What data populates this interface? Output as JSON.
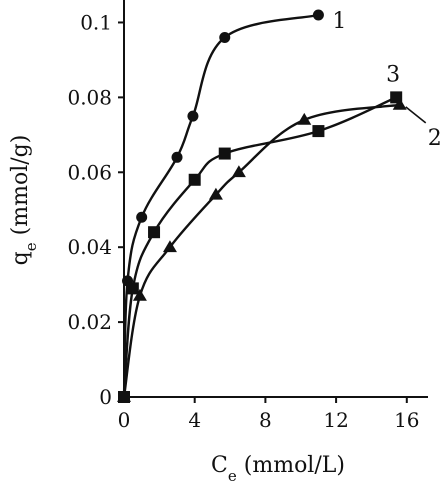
{
  "chart_data": {
    "type": "line",
    "xlabel": "Ce (mmol/L)",
    "ylabel": "qe (mmol/g)",
    "xlim": [
      0,
      17.2
    ],
    "ylim": [
      0,
      0.106
    ],
    "x_ticks": [
      0,
      4,
      8,
      12,
      16
    ],
    "y_ticks": [
      0,
      0.02,
      0.04,
      0.06,
      0.08,
      0.1
    ],
    "x_tick_labels": [
      "0",
      "4",
      "8",
      "12",
      "16"
    ],
    "y_tick_labels": [
      "0",
      "0.02",
      "0.04",
      "0.06",
      "0.08",
      "0.1"
    ],
    "grid": false,
    "legend": "none",
    "series": [
      {
        "label": "1",
        "marker": "circle",
        "color": "#111111",
        "x": [
          0,
          0.2,
          1.0,
          3.0,
          3.9,
          5.7,
          11.0
        ],
        "y": [
          0,
          0.031,
          0.048,
          0.064,
          0.075,
          0.096,
          0.102
        ]
      },
      {
        "label": "2",
        "marker": "triangle",
        "color": "#111111",
        "x": [
          0,
          0.9,
          2.6,
          5.2,
          6.5,
          10.2,
          15.6
        ],
        "y": [
          0,
          0.027,
          0.04,
          0.054,
          0.06,
          0.074,
          0.078
        ]
      },
      {
        "label": "3",
        "marker": "square",
        "color": "#111111",
        "x": [
          0,
          0.5,
          1.7,
          4.0,
          5.7,
          11.0,
          15.4
        ],
        "y": [
          0,
          0.029,
          0.044,
          0.058,
          0.065,
          0.071,
          0.08
        ]
      }
    ]
  }
}
